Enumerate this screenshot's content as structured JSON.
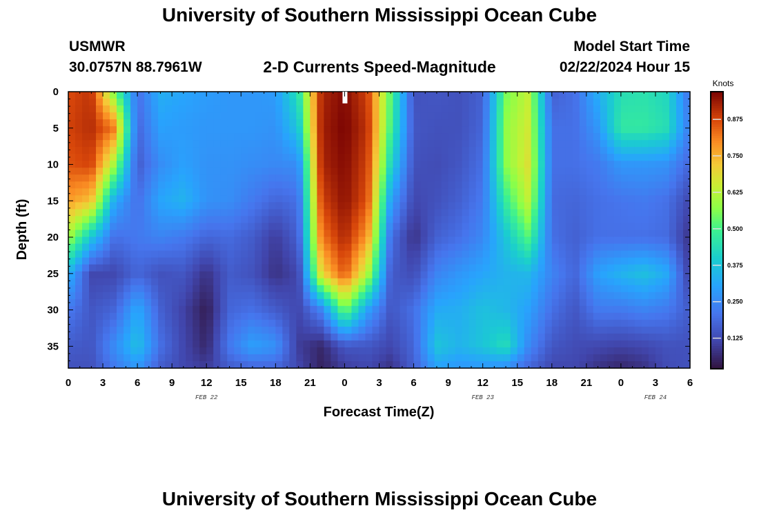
{
  "header": {
    "title": "University of Southern Mississippi Ocean Cube",
    "station": "USMWR",
    "coords": "30.0757N  88.7961W",
    "subtitle": "2-D Currents Speed-Magnitude",
    "model_start_label": "Model Start Time",
    "model_start_value": "02/22/2024 Hour 15"
  },
  "footer": {
    "title": "University of Southern Mississippi Ocean Cube"
  },
  "chart_data": {
    "type": "heatmap",
    "title": "2-D Currents Speed-Magnitude",
    "xlabel": "Forecast Time(Z)",
    "ylabel": "Depth (ft)",
    "x_tick_labels": [
      "0",
      "3",
      "6",
      "9",
      "12",
      "15",
      "18",
      "21",
      "0",
      "3",
      "6",
      "9",
      "12",
      "15",
      "18",
      "21",
      "0",
      "3",
      "6"
    ],
    "x_range_hours": [
      0,
      54
    ],
    "date_labels": [
      {
        "text": "FEB 22",
        "hour": 12
      },
      {
        "text": "FEB 23",
        "hour": 36
      },
      {
        "text": "FEB 24",
        "hour": 51
      }
    ],
    "y_ticks": [
      0,
      5,
      10,
      15,
      20,
      25,
      30,
      35
    ],
    "y_range_ft": [
      0,
      38
    ],
    "y_inverted": true,
    "now_marker_hour": 24,
    "colorbar": {
      "label": "Knots",
      "ticks": [
        "0.125",
        "0.250",
        "0.375",
        "0.500",
        "0.625",
        "0.750",
        "0.875"
      ],
      "range": [
        0.02,
        0.97
      ],
      "colormap": "turbo"
    },
    "z_units": "knots",
    "depth_levels_ft": [
      0,
      5,
      10,
      15,
      20,
      25,
      30,
      35,
      38
    ],
    "columns": [
      {
        "hour": 0,
        "speeds": [
          0.87,
          0.88,
          0.86,
          0.78,
          0.6,
          0.34,
          0.22,
          0.16,
          0.14
        ]
      },
      {
        "hour": 2,
        "speeds": [
          0.9,
          0.91,
          0.88,
          0.73,
          0.38,
          0.12,
          0.15,
          0.15,
          0.14
        ]
      },
      {
        "hour": 4,
        "speeds": [
          0.55,
          0.82,
          0.6,
          0.32,
          0.2,
          0.12,
          0.18,
          0.26,
          0.22
        ]
      },
      {
        "hour": 6,
        "speeds": [
          0.2,
          0.18,
          0.16,
          0.2,
          0.22,
          0.18,
          0.32,
          0.37,
          0.28
        ]
      },
      {
        "hour": 8,
        "speeds": [
          0.33,
          0.3,
          0.26,
          0.31,
          0.24,
          0.14,
          0.17,
          0.2,
          0.16
        ]
      },
      {
        "hour": 10,
        "speeds": [
          0.31,
          0.29,
          0.3,
          0.34,
          0.22,
          0.15,
          0.11,
          0.12,
          0.12
        ]
      },
      {
        "hour": 12,
        "speeds": [
          0.29,
          0.28,
          0.27,
          0.27,
          0.18,
          0.08,
          0.04,
          0.06,
          0.1
        ]
      },
      {
        "hour": 14,
        "speeds": [
          0.28,
          0.28,
          0.27,
          0.26,
          0.19,
          0.16,
          0.18,
          0.22,
          0.16
        ]
      },
      {
        "hour": 16,
        "speeds": [
          0.28,
          0.28,
          0.26,
          0.22,
          0.16,
          0.14,
          0.2,
          0.3,
          0.18
        ]
      },
      {
        "hour": 18,
        "speeds": [
          0.29,
          0.27,
          0.25,
          0.18,
          0.1,
          0.08,
          0.16,
          0.27,
          0.18
        ]
      },
      {
        "hour": 20,
        "speeds": [
          0.45,
          0.38,
          0.26,
          0.2,
          0.17,
          0.12,
          0.12,
          0.1,
          0.12
        ]
      },
      {
        "hour": 22,
        "speeds": [
          0.92,
          0.93,
          0.92,
          0.88,
          0.82,
          0.7,
          0.24,
          0.06,
          0.05
        ]
      },
      {
        "hour": 24,
        "speeds": [
          0.96,
          0.97,
          0.96,
          0.95,
          0.92,
          0.86,
          0.55,
          0.15,
          0.1
        ]
      },
      {
        "hour": 26,
        "speeds": [
          0.88,
          0.9,
          0.88,
          0.86,
          0.78,
          0.62,
          0.3,
          0.15,
          0.12
        ]
      },
      {
        "hour": 28,
        "speeds": [
          0.52,
          0.5,
          0.42,
          0.3,
          0.2,
          0.16,
          0.15,
          0.12,
          0.08
        ]
      },
      {
        "hour": 30,
        "speeds": [
          0.14,
          0.15,
          0.14,
          0.12,
          0.08,
          0.13,
          0.2,
          0.18,
          0.17
        ]
      },
      {
        "hour": 32,
        "speeds": [
          0.15,
          0.14,
          0.13,
          0.14,
          0.17,
          0.24,
          0.32,
          0.38,
          0.3
        ]
      },
      {
        "hour": 34,
        "speeds": [
          0.14,
          0.14,
          0.15,
          0.17,
          0.2,
          0.28,
          0.33,
          0.34,
          0.28
        ]
      },
      {
        "hour": 36,
        "speeds": [
          0.17,
          0.18,
          0.2,
          0.22,
          0.25,
          0.31,
          0.37,
          0.38,
          0.28
        ]
      },
      {
        "hour": 38,
        "speeds": [
          0.55,
          0.58,
          0.57,
          0.48,
          0.38,
          0.34,
          0.35,
          0.44,
          0.26
        ]
      },
      {
        "hour": 40,
        "speeds": [
          0.64,
          0.66,
          0.68,
          0.64,
          0.52,
          0.35,
          0.3,
          0.25,
          0.18
        ]
      },
      {
        "hour": 42,
        "speeds": [
          0.17,
          0.2,
          0.2,
          0.19,
          0.2,
          0.24,
          0.2,
          0.15,
          0.12
        ]
      },
      {
        "hour": 44,
        "speeds": [
          0.2,
          0.2,
          0.2,
          0.18,
          0.17,
          0.18,
          0.15,
          0.13,
          0.12
        ]
      },
      {
        "hour": 46,
        "speeds": [
          0.33,
          0.28,
          0.22,
          0.2,
          0.2,
          0.3,
          0.22,
          0.12,
          0.08
        ]
      },
      {
        "hour": 48,
        "speeds": [
          0.44,
          0.47,
          0.28,
          0.21,
          0.2,
          0.34,
          0.22,
          0.11,
          0.06
        ]
      },
      {
        "hour": 50,
        "speeds": [
          0.45,
          0.47,
          0.28,
          0.22,
          0.2,
          0.37,
          0.24,
          0.12,
          0.08
        ]
      },
      {
        "hour": 52,
        "speeds": [
          0.42,
          0.44,
          0.27,
          0.2,
          0.19,
          0.32,
          0.22,
          0.14,
          0.13
        ]
      },
      {
        "hour": 54,
        "speeds": [
          0.2,
          0.22,
          0.18,
          0.12,
          0.08,
          0.1,
          0.16,
          0.14,
          0.14
        ]
      }
    ]
  }
}
